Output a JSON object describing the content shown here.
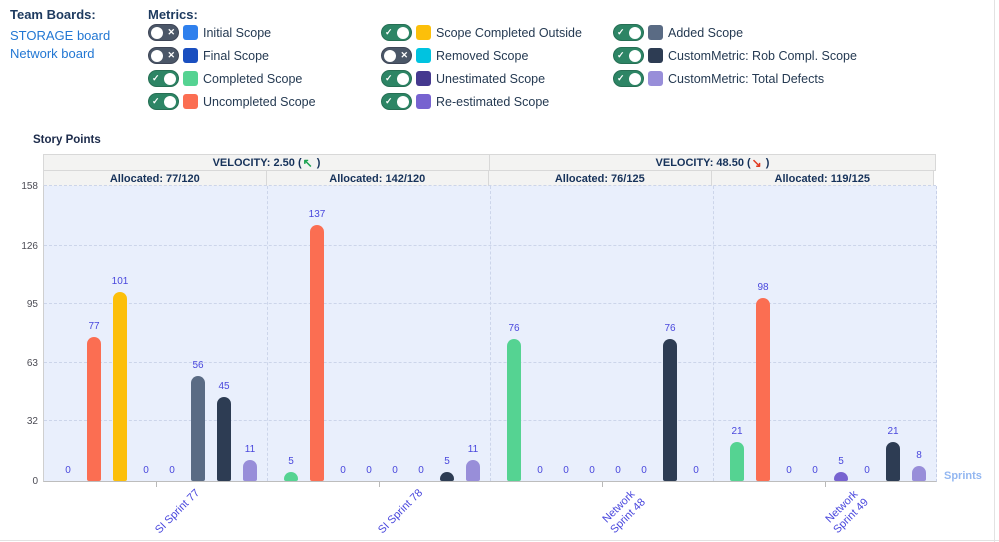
{
  "team_boards": {
    "title": "Team Boards:",
    "boards": [
      "STORAGE board",
      "Network board"
    ]
  },
  "metrics": {
    "title": "Metrics:",
    "toggle_on_symbol": "✓",
    "toggle_off_symbol": "✕",
    "columns": [
      [
        {
          "label": "Initial Scope",
          "color": "#2f80ed",
          "enabled": false
        },
        {
          "label": "Final Scope",
          "color": "#1a4fc0",
          "enabled": false
        },
        {
          "label": "Completed Scope",
          "color": "#55d392",
          "enabled": true
        },
        {
          "label": "Uncompleted Scope",
          "color": "#fb6e52",
          "enabled": true
        }
      ],
      [
        {
          "label": "Scope Completed Outside",
          "color": "#fcbf0a",
          "enabled": true
        },
        {
          "label": "Removed Scope",
          "color": "#00c3e0",
          "enabled": false
        },
        {
          "label": "Unestimated Scope",
          "color": "#45398f",
          "enabled": true
        },
        {
          "label": "Re-estimated Scope",
          "color": "#7763d0",
          "enabled": true
        }
      ],
      [
        {
          "label": "Added Scope",
          "color": "#5a6b84",
          "enabled": true
        },
        {
          "label": "CustomMetric: Rob Compl. Scope",
          "color": "#2d3c53",
          "enabled": true
        },
        {
          "label": "CustomMetric: Total Defects",
          "color": "#988ed9",
          "enabled": true
        }
      ]
    ]
  },
  "chart_data": {
    "type": "bar",
    "title": "",
    "ylabel": "Story Points",
    "xlabel": "Sprints",
    "ylim": [
      0,
      169
    ],
    "yticks": [
      0,
      32,
      63,
      95,
      126,
      158
    ],
    "grid": true,
    "value_label_color": "#4947dd",
    "categories": [
      "SI Sprint 77",
      "SI Sprint 78",
      "Network\nSprint 48",
      "Network\nSprint 49"
    ],
    "panels": [
      {
        "velocity_label": "VELOCITY: 2.50 (",
        "arrow": "↖",
        "close": " )",
        "trend": "up",
        "arrow_color": "#1ba14f",
        "allocated": [
          "Allocated: 77/120",
          "Allocated: 142/120"
        ]
      },
      {
        "velocity_label": "VELOCITY: 48.50 (",
        "arrow": "↘",
        "close": " )",
        "trend": "down",
        "arrow_color": "#e23a21",
        "allocated": [
          "Allocated: 76/125",
          "Allocated: 119/125"
        ]
      }
    ],
    "series": [
      {
        "name": "Completed Scope",
        "color": "#55d392",
        "values": [
          0,
          5,
          76,
          21
        ]
      },
      {
        "name": "Uncompleted Scope",
        "color": "#fb6e52",
        "values": [
          77,
          137,
          0,
          98
        ]
      },
      {
        "name": "Scope Completed Outside",
        "color": "#fcbf0a",
        "values": [
          101,
          0,
          0,
          0
        ]
      },
      {
        "name": "Unestimated Scope",
        "color": "#45398f",
        "values": [
          0,
          0,
          0,
          0
        ]
      },
      {
        "name": "Re-estimated Scope",
        "color": "#7763d0",
        "values": [
          0,
          0,
          0,
          5
        ]
      },
      {
        "name": "Added Scope",
        "color": "#5a6b84",
        "values": [
          56,
          0,
          0,
          0
        ]
      },
      {
        "name": "CustomMetric: Rob Compl. Scope",
        "color": "#2d3c53",
        "values": [
          45,
          5,
          76,
          21
        ]
      },
      {
        "name": "CustomMetric: Total Defects",
        "color": "#988ed9",
        "values": [
          11,
          11,
          0,
          8
        ]
      }
    ]
  }
}
